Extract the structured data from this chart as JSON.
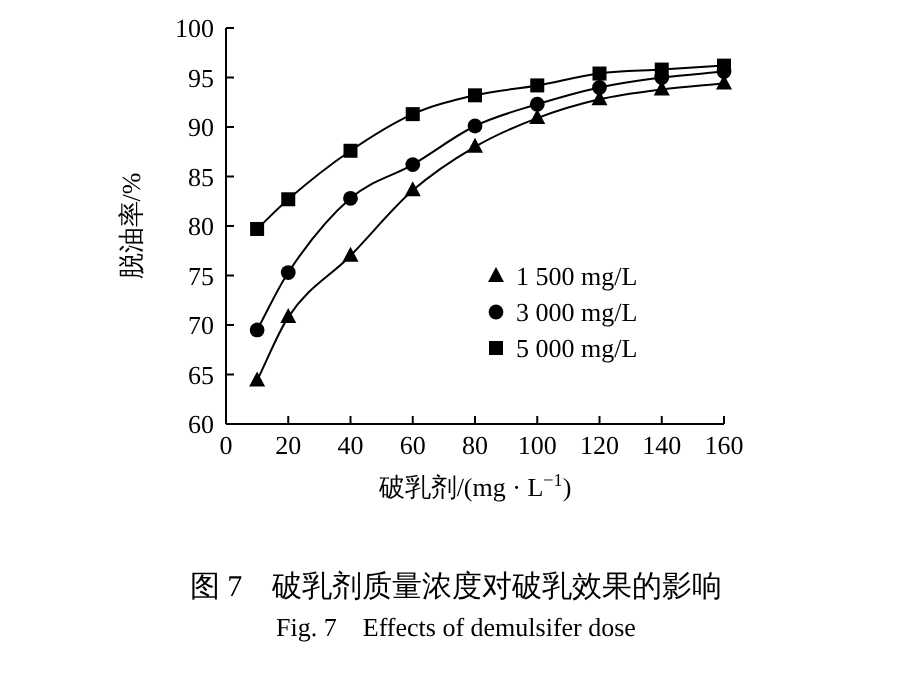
{
  "chart_data": {
    "type": "line",
    "title": "图 7　破乳剂质量浓度对破乳效果的影响",
    "subtitle": "Fig. 7　Effects of demulsifer dose",
    "xlabel": "破乳剂/(mg · L$^{−1}$)",
    "ylabel": "脱油率/%",
    "x": [
      10,
      20,
      40,
      60,
      80,
      100,
      120,
      140,
      160
    ],
    "series": [
      {
        "name": "1 500 mg/L",
        "color": "#000000",
        "marker": "triangle",
        "values": [
          64.4,
          70.8,
          77.0,
          83.6,
          88.0,
          90.9,
          92.8,
          93.8,
          94.4
        ]
      },
      {
        "name": "3 000 mg/L",
        "color": "#000000",
        "marker": "circle",
        "values": [
          69.5,
          75.3,
          82.8,
          86.2,
          90.1,
          92.3,
          94.0,
          95.0,
          95.6
        ]
      },
      {
        "name": "5 000 mg/L",
        "color": "#000000",
        "marker": "square",
        "values": [
          79.7,
          82.7,
          87.6,
          91.3,
          93.2,
          94.2,
          95.4,
          95.8,
          96.2
        ]
      }
    ],
    "xlim": [
      0,
      160
    ],
    "ylim": [
      60,
      100
    ],
    "xticks": [
      0,
      20,
      40,
      60,
      80,
      100,
      120,
      140,
      160
    ],
    "yticks": [
      60,
      65,
      70,
      75,
      80,
      85,
      90,
      95,
      100
    ],
    "grid": false,
    "legend": "right",
    "line_style": "solid"
  }
}
